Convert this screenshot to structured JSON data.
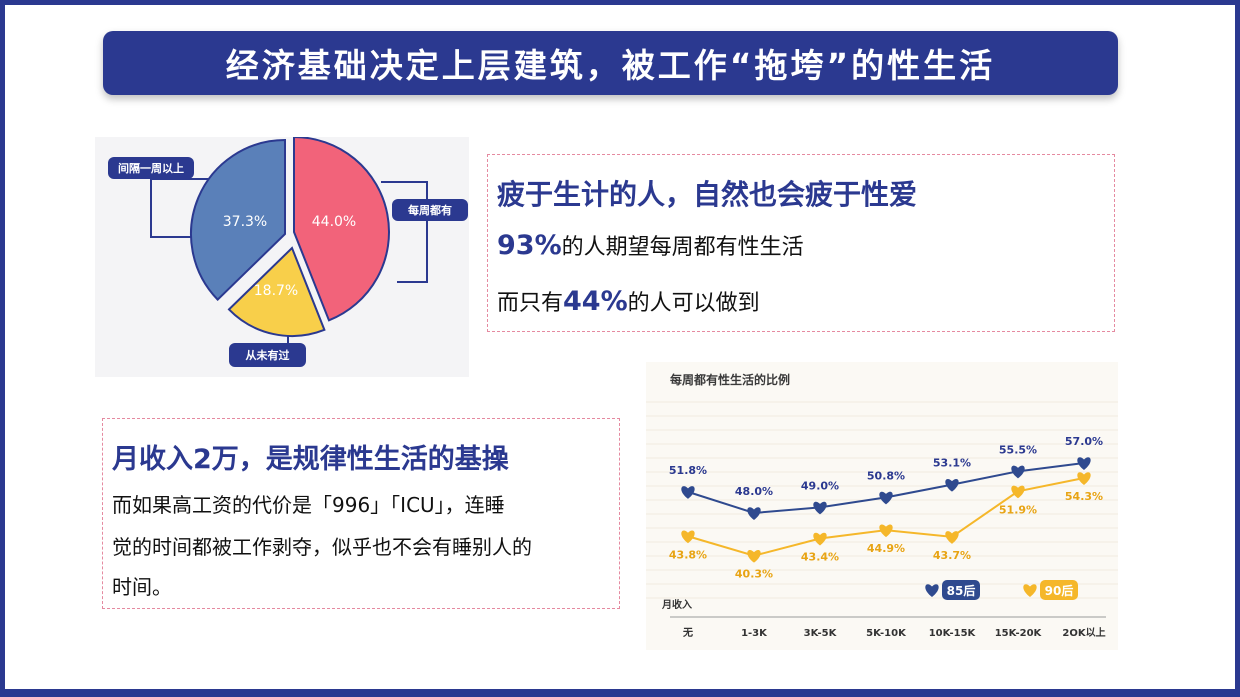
{
  "slide": {
    "title": "经济基础决定上层建筑，被工作“拖垮”的性生活",
    "colors": {
      "navy": "#2b3990",
      "pink_border": "#e58aa0",
      "series_85": "#2f4a8f",
      "series_90": "#f5b72a"
    }
  },
  "right_panel": {
    "heading": "疲于生计的人，自然也会疲于性爱",
    "line1_pct": "93%",
    "line1_text": "的人期望每周都有性生活",
    "line2_prefix": "而只有",
    "line2_pct": "44%",
    "line2_text": "的人可以做到"
  },
  "left_panel": {
    "heading": "月收入2万，是规律性生活的基操",
    "line1": "而如果高工资的代价是「996」「ICU」，连睡",
    "line2": "觉的时间都被工作剥夺，似乎也不会有睡别人的",
    "line3": "时间。"
  },
  "chart_data": [
    {
      "type": "pie",
      "slices": [
        {
          "label": "每周都有",
          "value": 44.0,
          "display": "44.0%",
          "color": "#f2637a"
        },
        {
          "label": "从未有过",
          "value": 18.7,
          "display": "18.7%",
          "color": "#f8cf4a"
        },
        {
          "label": "间隔一周以上",
          "value": 37.3,
          "display": "37.3%",
          "color": "#5a80b9"
        }
      ]
    },
    {
      "type": "line",
      "title": "每周都有性生活的比例",
      "xlabel": "月收入",
      "categories": [
        "无",
        "1-3K",
        "3K-5K",
        "5K-10K",
        "10K-15K",
        "15K-20K",
        "2OK以上"
      ],
      "series": [
        {
          "name": "85后",
          "values": [
            51.8,
            48.0,
            49.0,
            50.8,
            53.1,
            55.5,
            57.0
          ],
          "labels": [
            "51.8%",
            "48.0%",
            "49.0%",
            "50.8%",
            "53.1%",
            "55.5%",
            "57.0%"
          ],
          "color": "#2f4a8f"
        },
        {
          "name": "90后",
          "values": [
            43.8,
            40.3,
            43.4,
            44.9,
            43.7,
            51.9,
            54.3
          ],
          "labels": [
            "43.8%",
            "40.3%",
            "43.4%",
            "44.9%",
            "43.7%",
            "51.9%",
            "54.3%"
          ],
          "color": "#f5b72a"
        }
      ],
      "ylim": [
        35,
        60
      ]
    }
  ]
}
